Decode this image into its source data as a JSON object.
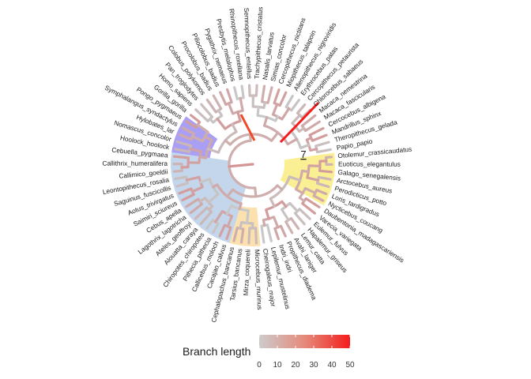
{
  "tree": {
    "tips": [
      "Otolemur_crassicaudatus",
      "Euoticus_elegantulus",
      "Galago_senegalensis",
      "Arctocebus_aureus",
      "Perodicticus_potto",
      "Loris_tardigradus",
      "Nycticebus_coucang",
      "Daubentonia_madagascariensis",
      "Varecia_variegata",
      "Eulemur_fulvus",
      "Hapalemur_griseus",
      "Lemur_catta",
      "Avahi_laniger",
      "Propithecus_diadema",
      "Indri_indri",
      "Lepilemur_mustelinus",
      "Cheirogaleus_major",
      "Microcebus_murinus",
      "Mirza_coquereli",
      "Tarsius_bancanus",
      "Cephalopachus_bancanus",
      "Cacajao_calvus",
      "Callicebus_moloch",
      "Pithecia_pithecia",
      "Chiropotes_chiropotes",
      "Alouatta_caraya",
      "Ateles_geoffroyi",
      "Lagothrix_lagotricha",
      "Cebus_apella",
      "Saimiri_sciureus",
      "Aotus_trivirgatus",
      "Saguinus_fuscicollis",
      "Leontopithecus_rosalia",
      "Callimico_goeldii",
      "Callithrix_humeralifera",
      "Cebuella_pygmaea",
      "Hoolock_hoolock",
      "Nomascus_concolor",
      "Hylobates_lar",
      "Symphalangus_syndactylus",
      "Pongo_pygmaeus",
      "Gorilla_gorilla",
      "Homo_sapiens",
      "Pan_troglodytes",
      "Colobus_polykomos",
      "Procolobus_badius",
      "Piliocolobus_badius",
      "Pygathrix_nemaeus",
      "Presbytis_melalophos",
      "Rhinopithecus_roxellana",
      "Semnopithecus_entellus",
      "Trachypithecus_cristatus",
      "Nasalis_larvatus",
      "Simias_concolor",
      "Cercopithecus_nictitans",
      "Miopithecus_talapoin",
      "Allenopithecus_nigroviridis",
      "Erythrocebus_patas",
      "Cercopithecus_petaurista",
      "Chlorocebus_sabaeus",
      "Macaca_nemestrina",
      "Macaca_fascicularis",
      "Cercocebus_albigena",
      "Mandrillus_sphinx",
      "Theropithecus_gelada",
      "Papio_papio"
    ],
    "colors": {
      "branch_low": "#c8c8c8",
      "branch_high": "#f41d1d",
      "highlight_lorisiformes": "#f6e33a",
      "highlight_strepsirrhini_small": "#f9c96b",
      "highlight_platyrrhini": "#a9c4e2",
      "highlight_hominoidea": "#7b6cf0"
    },
    "node_label": "7"
  },
  "legend": {
    "title": "Branch length",
    "ticks": [
      "0",
      "10",
      "20",
      "30",
      "40",
      "50"
    ],
    "range": [
      0,
      50
    ]
  }
}
